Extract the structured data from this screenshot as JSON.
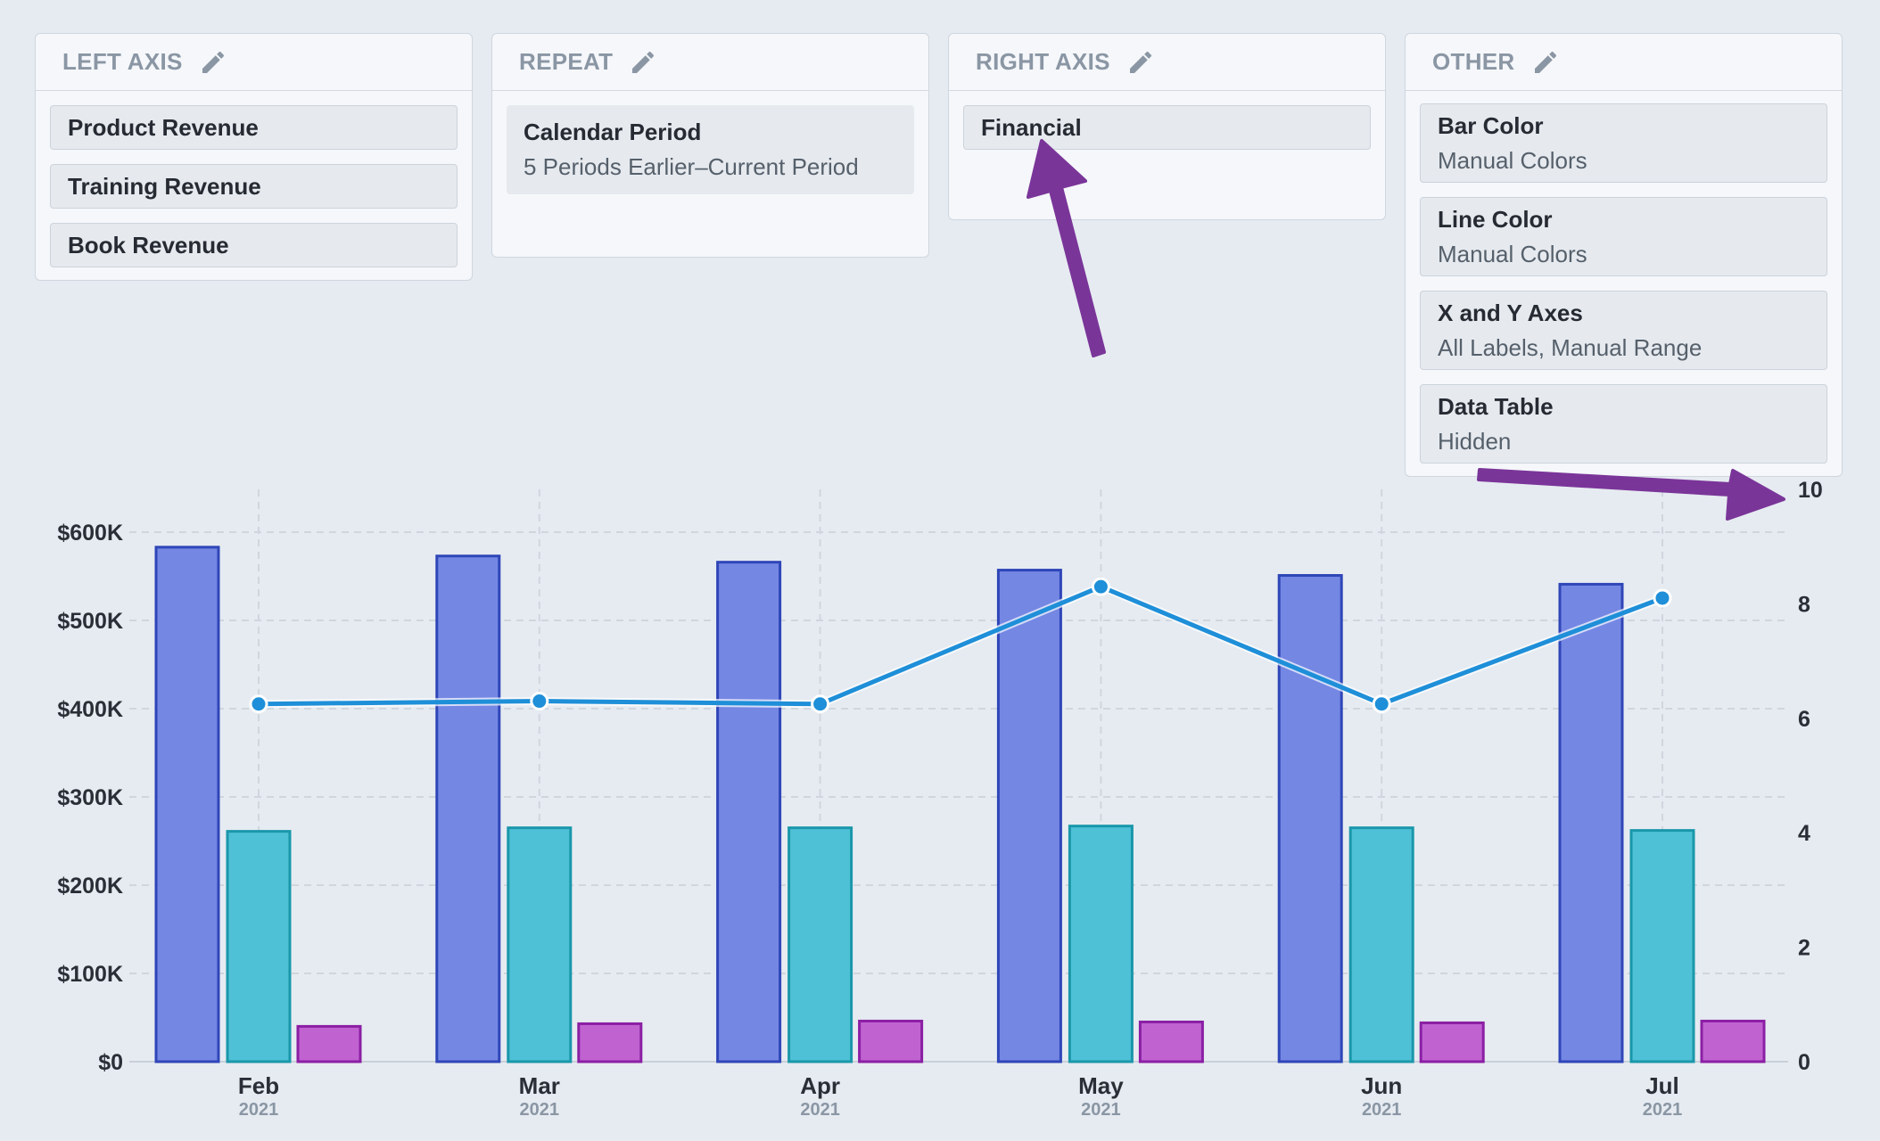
{
  "panels": {
    "left_axis": {
      "title": "LEFT AXIS",
      "items": [
        "Product Revenue",
        "Training Revenue",
        "Book Revenue"
      ]
    },
    "repeat": {
      "title": "REPEAT",
      "item_title": "Calendar Period",
      "item_sub": "5 Periods Earlier–Current Period"
    },
    "right_axis": {
      "title": "RIGHT AXIS",
      "items": [
        "Financial"
      ]
    },
    "other": {
      "title": "OTHER",
      "items": [
        {
          "title": "Bar Color",
          "sub": "Manual Colors"
        },
        {
          "title": "Line Color",
          "sub": "Manual Colors"
        },
        {
          "title": "X and Y Axes",
          "sub": "All Labels, Manual Range"
        },
        {
          "title": "Data Table",
          "sub": "Hidden"
        }
      ]
    }
  },
  "colors": {
    "product_bar": "#7487e3",
    "product_bar_stroke": "#2f46b8",
    "training_bar": "#4fc1d6",
    "training_bar_stroke": "#1a97aa",
    "book_bar": "#c063d1",
    "book_bar_stroke": "#8b1fa4",
    "line": "#1e8fd8",
    "arrow": "#7a3599"
  },
  "chart_data": {
    "type": "bar",
    "categories": [
      "Feb",
      "Mar",
      "Apr",
      "May",
      "Jun",
      "Jul"
    ],
    "category_years": [
      "2021",
      "2021",
      "2021",
      "2021",
      "2021",
      "2021"
    ],
    "series": [
      {
        "values": [
          583000,
          573000,
          566000,
          557000,
          551000,
          541000
        ]
      },
      {
        "values": [
          261000,
          265000,
          265000,
          267000,
          265000,
          262000
        ]
      },
      {
        "values": [
          40000,
          43000,
          46000,
          45000,
          44000,
          46000
        ]
      }
    ],
    "line_series": {
      "axis": "right",
      "values": [
        6.25,
        6.3,
        6.25,
        8.3,
        6.25,
        8.1
      ]
    },
    "left_axis": {
      "ylim": [
        0,
        600000
      ],
      "ticks": [
        0,
        100000,
        200000,
        300000,
        400000,
        500000,
        600000
      ],
      "tick_labels": [
        "$0",
        "$100K",
        "$200K",
        "$300K",
        "$400K",
        "$500K",
        "$600K"
      ]
    },
    "right_axis": {
      "ylim": [
        0,
        10
      ],
      "ticks": [
        0,
        2,
        4,
        6,
        8,
        10
      ],
      "tick_labels": [
        "0",
        "2",
        "4",
        "6",
        "8",
        "10"
      ]
    },
    "grid": true
  }
}
